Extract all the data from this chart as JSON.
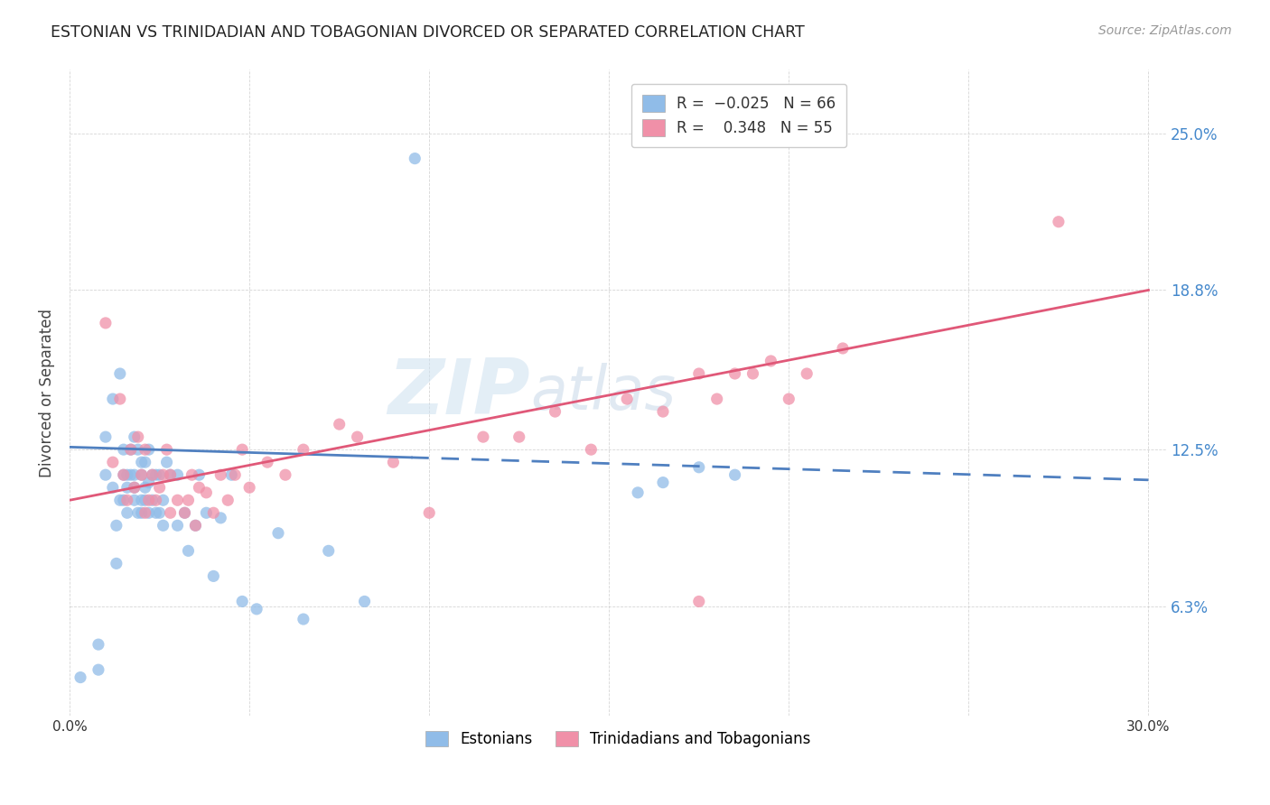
{
  "title": "ESTONIAN VS TRINIDADIAN AND TOBAGONIAN DIVORCED OR SEPARATED CORRELATION CHART",
  "source": "Source: ZipAtlas.com",
  "ylabel": "Divorced or Separated",
  "ytick_labels": [
    "6.3%",
    "12.5%",
    "18.8%",
    "25.0%"
  ],
  "ytick_values": [
    0.063,
    0.125,
    0.188,
    0.25
  ],
  "xtick_values": [
    0.0,
    0.05,
    0.1,
    0.15,
    0.2,
    0.25,
    0.3
  ],
  "xtick_labels": [
    "0.0%",
    "",
    "",
    "",
    "",
    "",
    "30.0%"
  ],
  "xlim": [
    0.0,
    0.305
  ],
  "ylim": [
    0.02,
    0.275
  ],
  "estonians_color": "#90bce8",
  "trinidadians_color": "#f090a8",
  "trend_estonian_color": "#5080c0",
  "trend_trinidadian_color": "#e05878",
  "watermark_zip": "ZIP",
  "watermark_atlas": "atlas",
  "legend_label1": "Estonians",
  "legend_label2": "Trinidadians and Tobagonians",
  "legend_r1": "R = ",
  "legend_v1": "-0.025",
  "legend_n1": "  N = 66",
  "legend_r2": "R =  ",
  "legend_v2": "0.348",
  "legend_n2": "  N = 55",
  "estonians_x": [
    0.003,
    0.008,
    0.008,
    0.01,
    0.01,
    0.012,
    0.012,
    0.013,
    0.013,
    0.014,
    0.014,
    0.015,
    0.015,
    0.015,
    0.016,
    0.016,
    0.016,
    0.017,
    0.017,
    0.018,
    0.018,
    0.018,
    0.018,
    0.019,
    0.019,
    0.02,
    0.02,
    0.02,
    0.02,
    0.021,
    0.021,
    0.021,
    0.022,
    0.022,
    0.022,
    0.023,
    0.023,
    0.024,
    0.024,
    0.025,
    0.025,
    0.026,
    0.026,
    0.027,
    0.028,
    0.03,
    0.03,
    0.032,
    0.033,
    0.035,
    0.036,
    0.038,
    0.04,
    0.042,
    0.045,
    0.048,
    0.052,
    0.058,
    0.065,
    0.072,
    0.082,
    0.096,
    0.158,
    0.165,
    0.175,
    0.185
  ],
  "estonians_y": [
    0.035,
    0.038,
    0.048,
    0.115,
    0.13,
    0.11,
    0.145,
    0.08,
    0.095,
    0.105,
    0.155,
    0.105,
    0.115,
    0.125,
    0.1,
    0.11,
    0.115,
    0.115,
    0.125,
    0.105,
    0.11,
    0.115,
    0.13,
    0.1,
    0.125,
    0.1,
    0.105,
    0.115,
    0.12,
    0.105,
    0.11,
    0.12,
    0.1,
    0.112,
    0.125,
    0.105,
    0.115,
    0.1,
    0.115,
    0.1,
    0.115,
    0.095,
    0.105,
    0.12,
    0.115,
    0.095,
    0.115,
    0.1,
    0.085,
    0.095,
    0.115,
    0.1,
    0.075,
    0.098,
    0.115,
    0.065,
    0.062,
    0.092,
    0.058,
    0.085,
    0.065,
    0.24,
    0.108,
    0.112,
    0.118,
    0.115
  ],
  "trinidadians_x": [
    0.01,
    0.012,
    0.014,
    0.015,
    0.016,
    0.017,
    0.018,
    0.019,
    0.02,
    0.021,
    0.021,
    0.022,
    0.023,
    0.024,
    0.025,
    0.026,
    0.027,
    0.028,
    0.028,
    0.03,
    0.032,
    0.033,
    0.034,
    0.035,
    0.036,
    0.038,
    0.04,
    0.042,
    0.044,
    0.046,
    0.048,
    0.05,
    0.055,
    0.06,
    0.065,
    0.075,
    0.08,
    0.09,
    0.1,
    0.115,
    0.125,
    0.135,
    0.145,
    0.155,
    0.165,
    0.175,
    0.18,
    0.185,
    0.19,
    0.195,
    0.2,
    0.205,
    0.215,
    0.175,
    0.275
  ],
  "trinidadians_y": [
    0.175,
    0.12,
    0.145,
    0.115,
    0.105,
    0.125,
    0.11,
    0.13,
    0.115,
    0.1,
    0.125,
    0.105,
    0.115,
    0.105,
    0.11,
    0.115,
    0.125,
    0.1,
    0.115,
    0.105,
    0.1,
    0.105,
    0.115,
    0.095,
    0.11,
    0.108,
    0.1,
    0.115,
    0.105,
    0.115,
    0.125,
    0.11,
    0.12,
    0.115,
    0.125,
    0.135,
    0.13,
    0.12,
    0.1,
    0.13,
    0.13,
    0.14,
    0.125,
    0.145,
    0.14,
    0.155,
    0.145,
    0.155,
    0.155,
    0.16,
    0.145,
    0.155,
    0.165,
    0.065,
    0.215
  ],
  "trend_est_x0": 0.0,
  "trend_est_x1": 0.3,
  "trend_est_y0": 0.126,
  "trend_est_y1": 0.113,
  "trend_tri_x0": 0.0,
  "trend_tri_x1": 0.3,
  "trend_tri_y0": 0.105,
  "trend_tri_y1": 0.188
}
